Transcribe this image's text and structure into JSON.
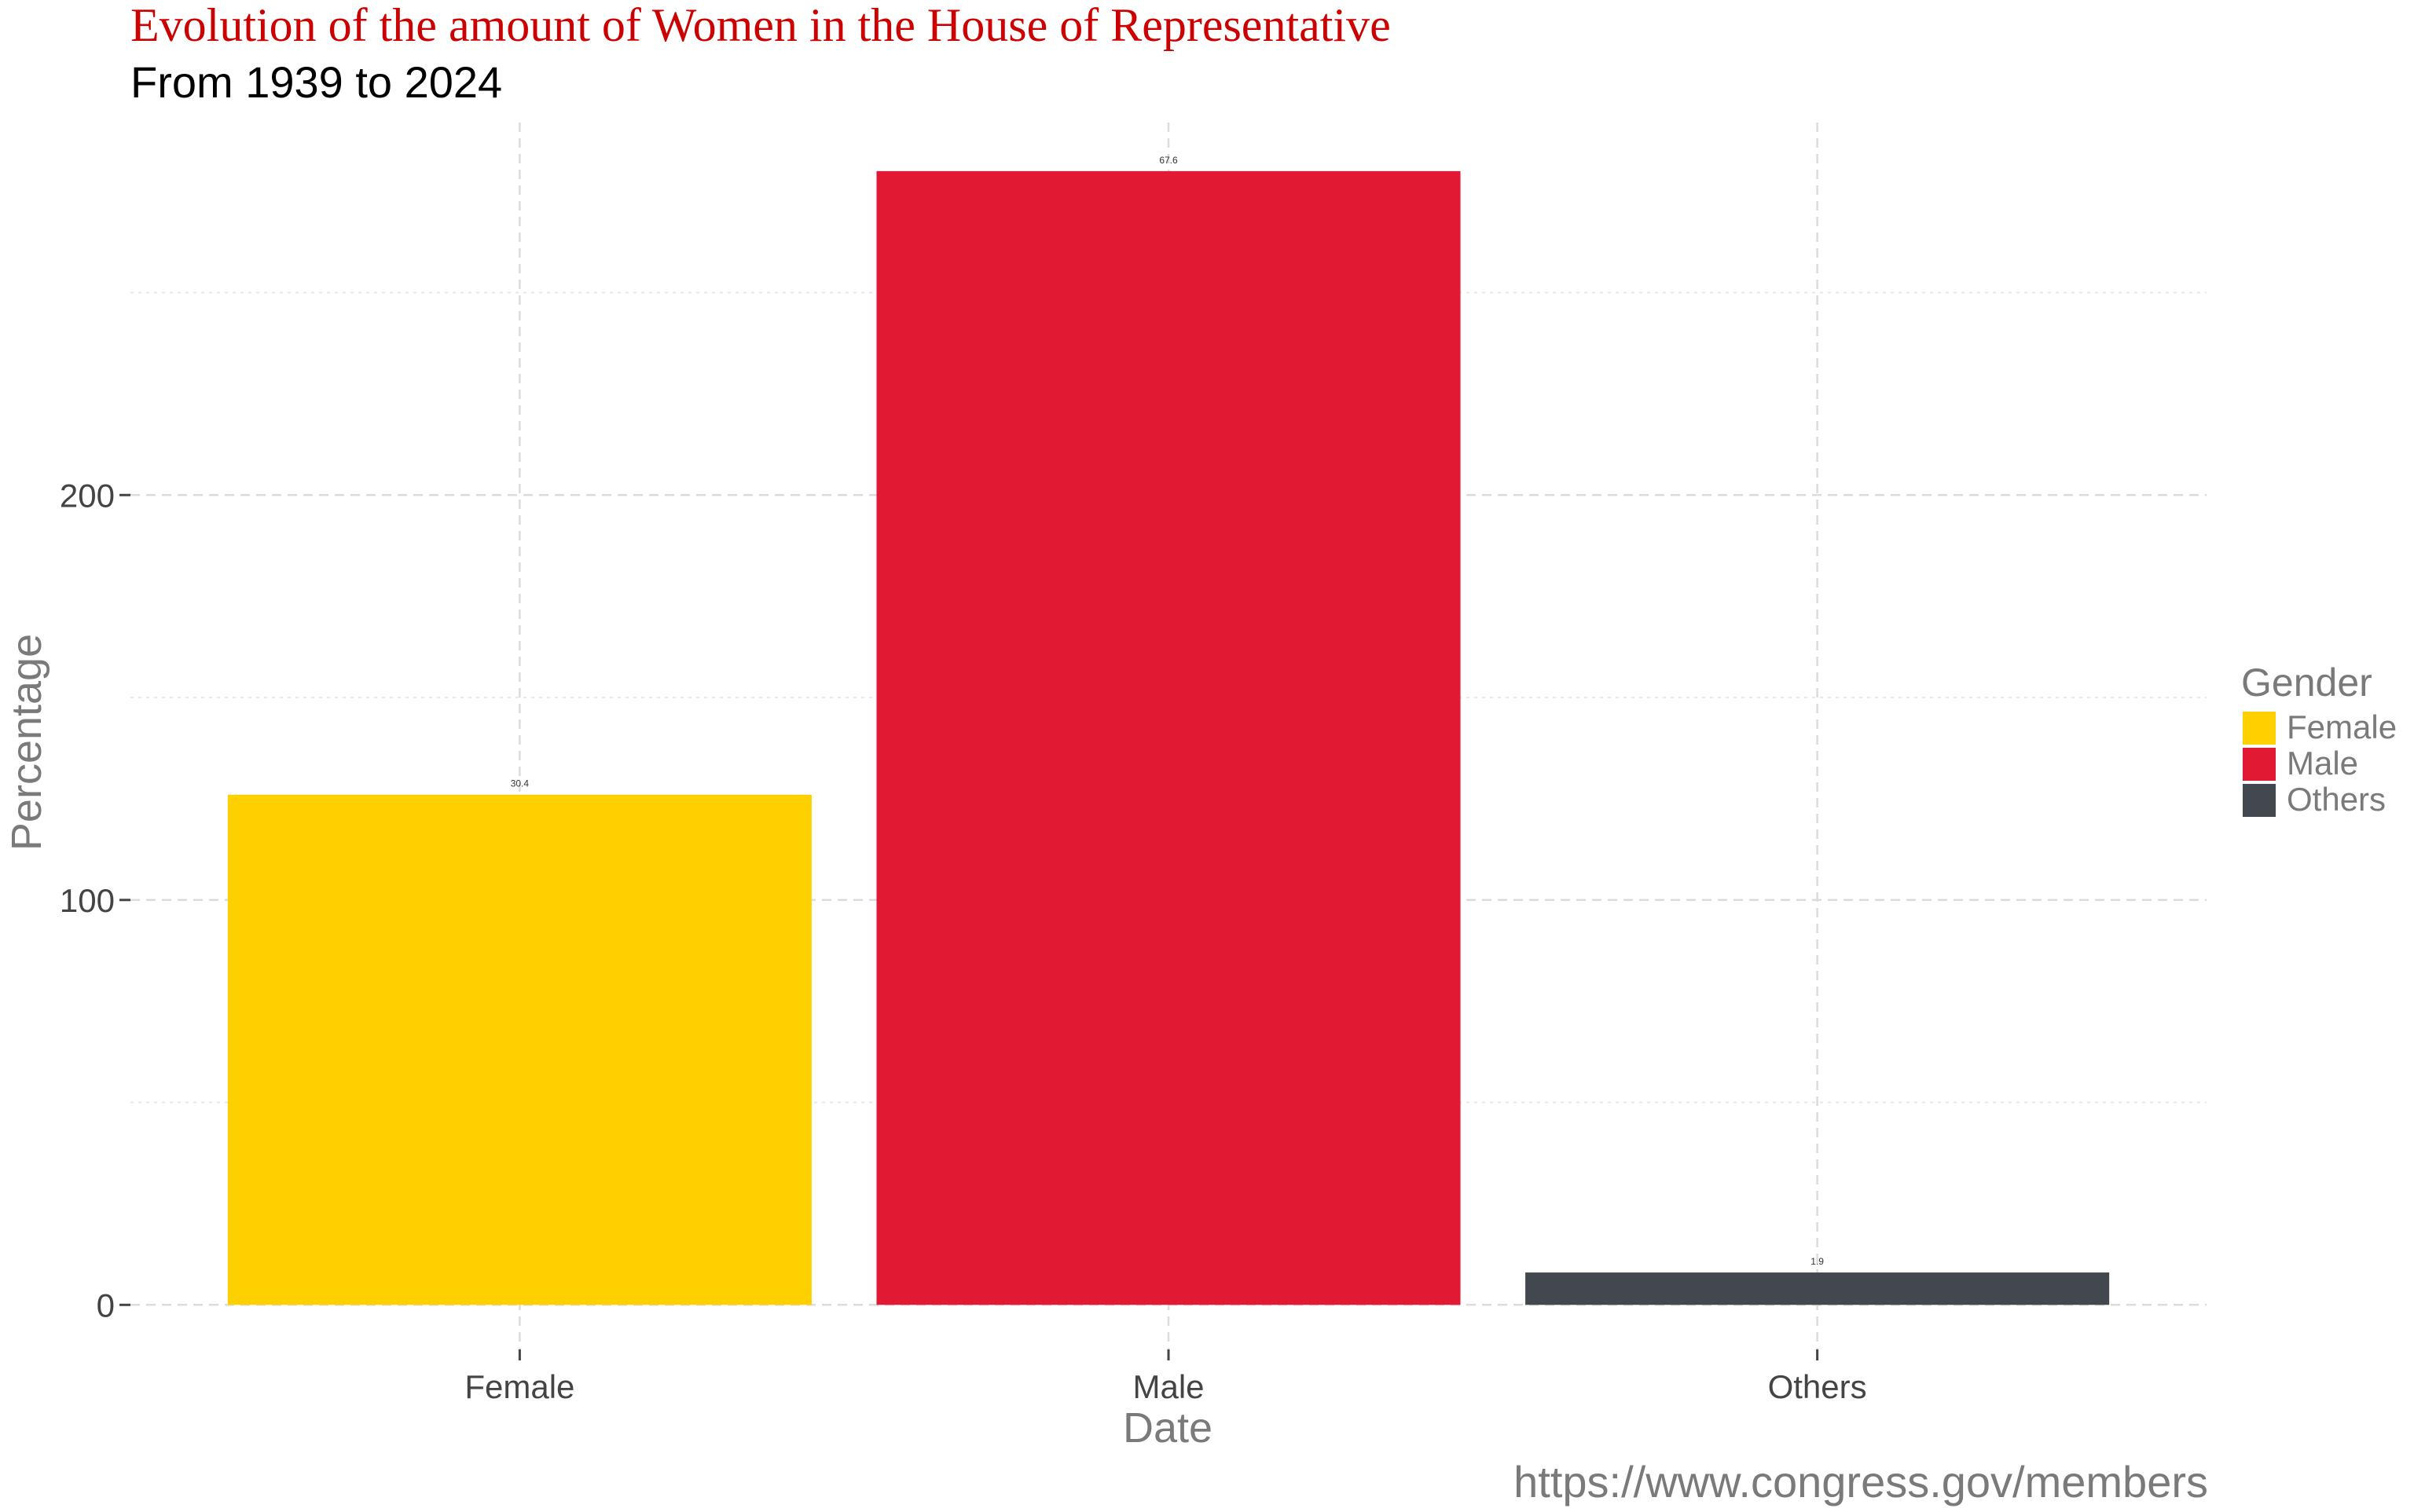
{
  "chart_data": {
    "type": "bar",
    "title": "Evolution of the amount of Women in the House of Representative",
    "subtitle": "From 1939 to 2024",
    "xlabel": "Date",
    "ylabel": "Percentage",
    "caption": "https://www.congress.gov/members",
    "categories": [
      "Female",
      "Male",
      "Others"
    ],
    "values": [
      126,
      280,
      8
    ],
    "data_labels": [
      "30.4",
      "67.6",
      "1.9"
    ],
    "ylim": [
      -11,
      292
    ],
    "yticks": [
      0,
      100,
      200
    ],
    "ytick_labels": [
      "0",
      "100",
      "200"
    ],
    "grid": true,
    "legend": {
      "title": "Gender",
      "position": "right",
      "items": [
        "Female",
        "Male",
        "Others"
      ]
    },
    "colors": {
      "Female": "#FFD000",
      "Male": "#E11932",
      "Others": "#43484E",
      "title": "#CC0000"
    }
  }
}
